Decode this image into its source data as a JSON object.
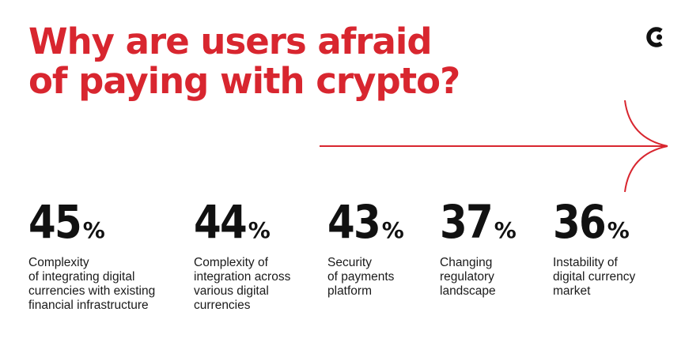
{
  "title": {
    "line1": "Why are users afraid",
    "line2": "of paying with crypto?"
  },
  "logo": {
    "icon": "brand-logo-icon"
  },
  "arrow": {
    "icon": "arrow-right-icon",
    "color": "#d8262f"
  },
  "colors": {
    "accent": "#d8262f",
    "text": "#111111"
  },
  "stats": [
    {
      "value": "45",
      "unit": "%",
      "label": "Complexity\nof integrating digital\ncurrencies with existing\nfinancial infrastructure"
    },
    {
      "value": "44",
      "unit": "%",
      "label": "Complexity of\nintegration across\nvarious digital\ncurrencies"
    },
    {
      "value": "43",
      "unit": "%",
      "label": "Security\nof payments\nplatform"
    },
    {
      "value": "37",
      "unit": "%",
      "label": "Changing\nregulatory\nlandscape"
    },
    {
      "value": "36",
      "unit": "%",
      "label": "Instability of\ndigital currency\nmarket"
    }
  ]
}
